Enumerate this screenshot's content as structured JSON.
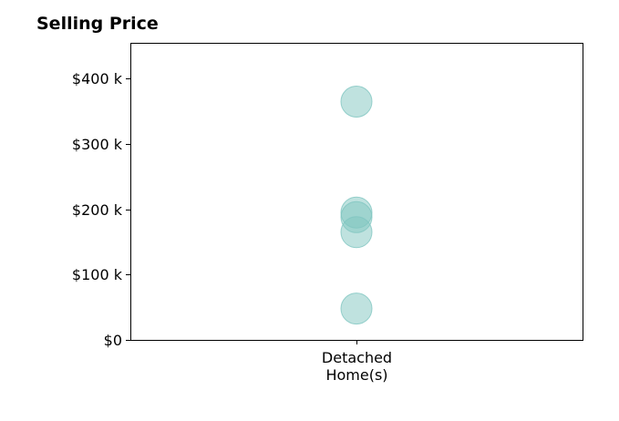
{
  "chart_data": {
    "type": "scatter",
    "title": "Selling Price",
    "xlabel": "",
    "ylabel": "",
    "categories": [
      "Detached\nHome(s)"
    ],
    "series": [
      {
        "category_index": 0,
        "values": [
          365000,
          195000,
          188000,
          165000,
          48000
        ]
      }
    ],
    "ylim": [
      0,
      455000
    ],
    "yticks": [
      0,
      100000,
      200000,
      300000,
      400000
    ],
    "ytick_labels": [
      "$0",
      "$100 k",
      "$200 k",
      "$300 k",
      "$400 k"
    ],
    "grid": false,
    "point_color": "#7fc6c0",
    "point_opacity": 0.5
  }
}
